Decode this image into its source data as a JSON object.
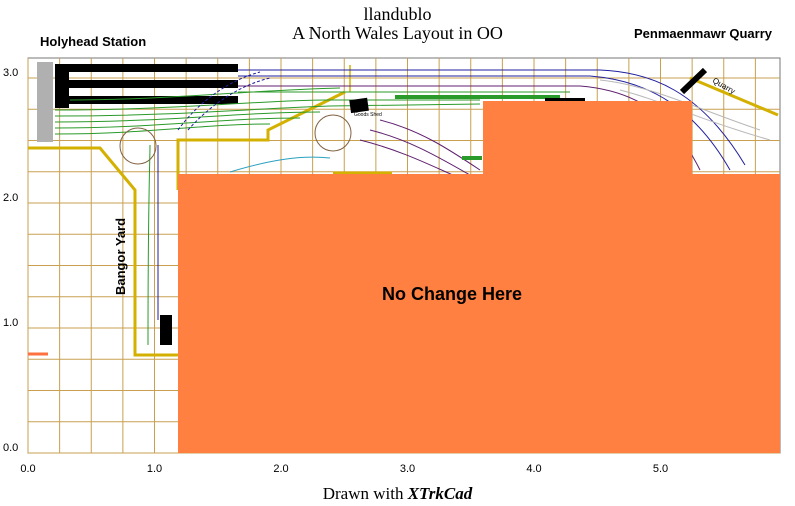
{
  "title": {
    "line1": "llandublo",
    "line2": "A North Wales Layout in OO"
  },
  "labels": {
    "holyhead": "Holyhead Station",
    "penmaenmawr": "Penmaenmawr Quarry",
    "bangor_yard": "Bangor Yard",
    "quarry": "Quarry",
    "goods_shed": "Goods Shed",
    "no_change": "No Change Here"
  },
  "footer": {
    "prefix": "Drawn with ",
    "app": "XTrkCad"
  },
  "axes": {
    "x_ticks": [
      "0.0",
      "1.0",
      "2.0",
      "3.0",
      "4.0",
      "5.0"
    ],
    "y_ticks": [
      "0.0",
      "1.0",
      "2.0",
      "3.0"
    ]
  },
  "colors": {
    "grid": "#c8a050",
    "baseboard_edge": "#d4b000",
    "overlay": "#ff8040",
    "platform": "#b0b0b0",
    "track_green": "#2a9a2a",
    "track_blue": "#2020a0",
    "track_purple": "#602070"
  }
}
